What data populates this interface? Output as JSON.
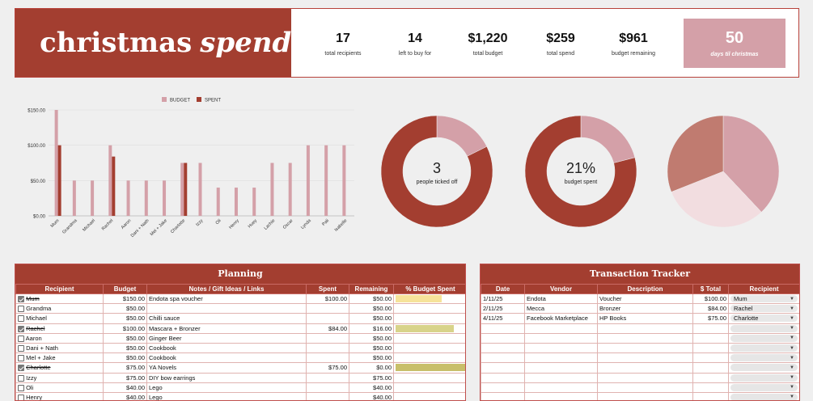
{
  "banner": {
    "title_plain": "christmas",
    "title_italic": "spending",
    "stats": [
      {
        "value": "17",
        "label": "total recipients"
      },
      {
        "value": "14",
        "label": "left to buy for"
      },
      {
        "value": "$1,220",
        "label": "total budget"
      },
      {
        "value": "$259",
        "label": "total spend"
      },
      {
        "value": "$961",
        "label": "budget remaining"
      }
    ],
    "days": {
      "value": "50",
      "label": "days til christmas"
    }
  },
  "colors": {
    "accent": "#a33e30",
    "budget": "#d4a0a8",
    "spent": "#a33e30",
    "light_pink": "#f2dde0",
    "muted": "#c07b70"
  },
  "chart_data": [
    {
      "type": "bar",
      "legend": [
        "BUDGET",
        "SPENT"
      ],
      "legend_position": "top",
      "categories": [
        "Mum",
        "Grandma",
        "Michael",
        "Rachel",
        "Aaron",
        "Dani + Nath",
        "Mel + Jake",
        "Charlotte",
        "Izzy",
        "Oli",
        "Henry",
        "Huey",
        "Lachie",
        "Oscar",
        "Lynda",
        "Pali",
        "Isabelle"
      ],
      "series": [
        {
          "name": "BUDGET",
          "values": [
            150,
            50,
            50,
            100,
            50,
            50,
            50,
            75,
            75,
            40,
            40,
            40,
            75,
            75,
            100,
            100,
            100
          ]
        },
        {
          "name": "SPENT",
          "values": [
            100,
            0,
            0,
            84,
            0,
            0,
            0,
            75,
            0,
            0,
            0,
            0,
            0,
            0,
            0,
            0,
            0
          ]
        }
      ],
      "yticks": [
        "$0.00",
        "$50.00",
        "$100.00",
        "$150.00"
      ],
      "ylim": [
        0,
        150
      ],
      "grid": true
    },
    {
      "type": "pie",
      "donut": true,
      "center_value": "3",
      "center_label": "people ticked off",
      "values": [
        3,
        14
      ]
    },
    {
      "type": "pie",
      "donut": true,
      "center_value": "21%",
      "center_label": "budget spent",
      "values": [
        21,
        79
      ]
    },
    {
      "type": "pie",
      "donut": false,
      "values": [
        38,
        31,
        31
      ]
    }
  ],
  "planning": {
    "title": "Planning",
    "headers": [
      "Recipient",
      "Budget",
      "Notes / Gift Ideas / Links",
      "Spent",
      "Remaining",
      "% Budget Spent"
    ],
    "rows": [
      {
        "checked": true,
        "name": "Mum",
        "budget": "$150.00",
        "notes": "Endota spa voucher",
        "spent": "$100.00",
        "remaining": "$50.00",
        "pct": 0.667
      },
      {
        "checked": false,
        "name": "Grandma",
        "budget": "$50.00",
        "notes": "",
        "spent": "",
        "remaining": "$50.00",
        "pct": 0
      },
      {
        "checked": false,
        "name": "Michael",
        "budget": "$50.00",
        "notes": "Chilli sauce",
        "spent": "",
        "remaining": "$50.00",
        "pct": 0
      },
      {
        "checked": true,
        "name": "Rachel",
        "budget": "$100.00",
        "notes": "Mascara + Bronzer",
        "spent": "$84.00",
        "remaining": "$16.00",
        "pct": 0.84
      },
      {
        "checked": false,
        "name": "Aaron",
        "budget": "$50.00",
        "notes": "Ginger Beer",
        "spent": "",
        "remaining": "$50.00",
        "pct": 0
      },
      {
        "checked": false,
        "name": "Dani + Nath",
        "budget": "$50.00",
        "notes": "Cookbook",
        "spent": "",
        "remaining": "$50.00",
        "pct": 0
      },
      {
        "checked": false,
        "name": "Mel + Jake",
        "budget": "$50.00",
        "notes": "Cookbook",
        "spent": "",
        "remaining": "$50.00",
        "pct": 0
      },
      {
        "checked": true,
        "name": "Charlotte",
        "budget": "$75.00",
        "notes": "YA Novels",
        "spent": "$75.00",
        "remaining": "$0.00",
        "pct": 1.0
      },
      {
        "checked": false,
        "name": "Izzy",
        "budget": "$75.00",
        "notes": "DIY bow earrings",
        "spent": "",
        "remaining": "$75.00",
        "pct": 0
      },
      {
        "checked": false,
        "name": "Oli",
        "budget": "$40.00",
        "notes": "Lego",
        "spent": "",
        "remaining": "$40.00",
        "pct": 0
      },
      {
        "checked": false,
        "name": "Henry",
        "budget": "$40.00",
        "notes": "Lego",
        "spent": "",
        "remaining": "$40.00",
        "pct": 0
      }
    ]
  },
  "transactions": {
    "title": "Transaction Tracker",
    "headers": [
      "Date",
      "Vendor",
      "Description",
      "$ Total",
      "Recipient"
    ],
    "rows": [
      {
        "date": "1/11/25",
        "vendor": "Endota",
        "desc": "Voucher",
        "total": "$100.00",
        "recipient": "Mum"
      },
      {
        "date": "2/11/25",
        "vendor": "Mecca",
        "desc": "Bronzer",
        "total": "$84.00",
        "recipient": "Rachel"
      },
      {
        "date": "4/11/25",
        "vendor": "Facebook Marketplace",
        "desc": "HP Books",
        "total": "$75.00",
        "recipient": "Charlotte"
      },
      {
        "date": "",
        "vendor": "",
        "desc": "",
        "total": "",
        "recipient": ""
      },
      {
        "date": "",
        "vendor": "",
        "desc": "",
        "total": "",
        "recipient": ""
      },
      {
        "date": "",
        "vendor": "",
        "desc": "",
        "total": "",
        "recipient": ""
      },
      {
        "date": "",
        "vendor": "",
        "desc": "",
        "total": "",
        "recipient": ""
      },
      {
        "date": "",
        "vendor": "",
        "desc": "",
        "total": "",
        "recipient": ""
      },
      {
        "date": "",
        "vendor": "",
        "desc": "",
        "total": "",
        "recipient": ""
      },
      {
        "date": "",
        "vendor": "",
        "desc": "",
        "total": "",
        "recipient": ""
      },
      {
        "date": "",
        "vendor": "",
        "desc": "",
        "total": "",
        "recipient": ""
      }
    ]
  }
}
